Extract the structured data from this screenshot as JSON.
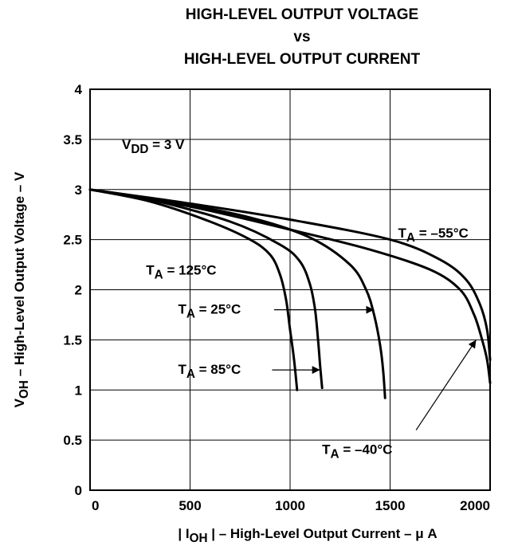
{
  "chart_data": {
    "type": "line",
    "title_lines": [
      "HIGH-LEVEL OUTPUT VOLTAGE",
      "vs",
      "HIGH-LEVEL OUTPUT CURRENT"
    ],
    "xlabel": {
      "prefix": "| I",
      "sub": "OH",
      "suffix": " | – High-Level Output Current – μ A"
    },
    "ylabel": {
      "prefix": "V",
      "sub": "OH",
      "suffix": " – High-Level Output Voltage – V"
    },
    "xlim": [
      0,
      2000
    ],
    "ylim": [
      0,
      4
    ],
    "x_ticks": [
      0,
      500,
      1000,
      1500,
      2000
    ],
    "y_ticks": [
      0,
      0.5,
      1,
      1.5,
      2,
      2.5,
      3,
      3.5,
      4
    ],
    "y_tick_labels": [
      "0",
      "0.5",
      "1",
      "1.5",
      "2",
      "2.5",
      "3",
      "3.5",
      "4"
    ],
    "grid": true,
    "condition": {
      "prefix": "V",
      "sub": "DD",
      "suffix": " = 3 V"
    },
    "series": [
      {
        "name": "T_A = 125°C",
        "points": [
          [
            0,
            3.0
          ],
          [
            300,
            2.88
          ],
          [
            600,
            2.68
          ],
          [
            800,
            2.5
          ],
          [
            900,
            2.35
          ],
          [
            950,
            2.15
          ],
          [
            980,
            1.9
          ],
          [
            1000,
            1.6
          ],
          [
            1020,
            1.3
          ],
          [
            1035,
            1.0
          ]
        ]
      },
      {
        "name": "T_A = 85°C",
        "points": [
          [
            0,
            3.0
          ],
          [
            300,
            2.9
          ],
          [
            700,
            2.68
          ],
          [
            950,
            2.45
          ],
          [
            1050,
            2.28
          ],
          [
            1100,
            2.05
          ],
          [
            1125,
            1.8
          ],
          [
            1140,
            1.5
          ],
          [
            1150,
            1.25
          ],
          [
            1160,
            1.02
          ]
        ]
      },
      {
        "name": "T_A = 25°C",
        "points": [
          [
            0,
            3.0
          ],
          [
            400,
            2.88
          ],
          [
            800,
            2.72
          ],
          [
            1100,
            2.52
          ],
          [
            1300,
            2.25
          ],
          [
            1380,
            2.0
          ],
          [
            1420,
            1.75
          ],
          [
            1450,
            1.45
          ],
          [
            1465,
            1.2
          ],
          [
            1475,
            0.92
          ]
        ]
      },
      {
        "name": "T_A = –40°C",
        "points": [
          [
            0,
            3.0
          ],
          [
            500,
            2.83
          ],
          [
            1000,
            2.6
          ],
          [
            1400,
            2.4
          ],
          [
            1700,
            2.2
          ],
          [
            1850,
            2.0
          ],
          [
            1920,
            1.75
          ],
          [
            1960,
            1.5
          ],
          [
            1985,
            1.3
          ],
          [
            2000,
            1.07
          ]
        ]
      },
      {
        "name": "T_A = –55°C",
        "points": [
          [
            0,
            3.0
          ],
          [
            500,
            2.86
          ],
          [
            1000,
            2.7
          ],
          [
            1500,
            2.5
          ],
          [
            1750,
            2.3
          ],
          [
            1880,
            2.1
          ],
          [
            1950,
            1.85
          ],
          [
            1985,
            1.6
          ],
          [
            2000,
            1.3
          ]
        ]
      }
    ],
    "annotations": [
      {
        "id": "t125",
        "prefix": "T",
        "sub": "A",
        "suffix": " = 125°C",
        "x": 280,
        "y": 2.15
      },
      {
        "id": "t25",
        "prefix": "T",
        "sub": "A",
        "suffix": " = 25°C",
        "x": 440,
        "y": 1.76,
        "arrow_from": [
          920,
          1.8
        ],
        "arrow_to": [
          1420,
          1.8
        ]
      },
      {
        "id": "t85",
        "prefix": "T",
        "sub": "A",
        "suffix": " = 85°C",
        "x": 440,
        "y": 1.16,
        "arrow_from": [
          910,
          1.2
        ],
        "arrow_to": [
          1150,
          1.2
        ]
      },
      {
        "id": "tm40",
        "prefix": "T",
        "sub": "A",
        "suffix": " = –40°C",
        "x": 1160,
        "y": 0.36,
        "arrow_from": [
          1630,
          0.6
        ],
        "arrow_to": [
          1930,
          1.5
        ]
      },
      {
        "id": "tm55",
        "prefix": "T",
        "sub": "A",
        "suffix": " = –55°C",
        "x": 1540,
        "y": 2.52
      }
    ]
  }
}
